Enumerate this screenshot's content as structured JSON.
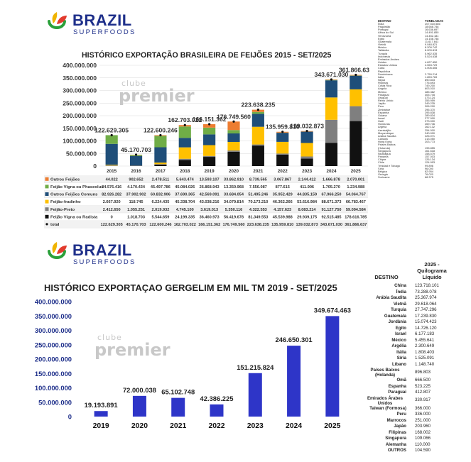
{
  "logo": {
    "brand": "BRAZIL",
    "sub": "SUPERFOODS"
  },
  "colors": {
    "outros_feijoes": "#ed7d31",
    "vigna_phaseolus": "#70ad47",
    "outros_comuns": "#1f4e79",
    "fradinho": "#ffc000",
    "preto": "#7f7f7f",
    "vigna_rajado": "#111111",
    "total_dot": "#111111",
    "sesame_bar": "#2e35c8",
    "brand_blue": "#1e2f8a"
  },
  "watermark": {
    "small": "clube",
    "big": "premier"
  },
  "chart1": {
    "chart_data": {
      "type": "bar",
      "stacked": true,
      "title": "HISTÓRICO EXPORTAÇÃO BRASILEIRA DE FEIJÕES 2015 - SET/2025",
      "categories": [
        "2015",
        "2016",
        "2017",
        "2018",
        "2019",
        "2020",
        "2021",
        "2022",
        "2023",
        "2024",
        "2025"
      ],
      "ylim": [
        0,
        400000000
      ],
      "yticks": [
        "0",
        "50.000.000",
        "100.000.000",
        "150.000.000",
        "200.000.000",
        "250.000.000",
        "300.000.000",
        "350.000.000",
        "400.000.000"
      ],
      "grid": true,
      "series": [
        {
          "name": "Feijão Vigna ou Feijão Rajado",
          "values": [
            0,
            1018703,
            5544659,
            24199335,
            36460973,
            56419678,
            81349553,
            45539988,
            29939175,
            92515485,
            178616785
          ],
          "labels": [
            "0",
            "1.018.703",
            "5.544.659",
            "24.199.335",
            "36.460.973",
            "56.419.678",
            "81.349.553",
            "45.539.988",
            "29.939.175",
            "92.515.485",
            "178.616.785"
          ]
        },
        {
          "name": "Feijão-Preto",
          "values": [
            2412650,
            1055251,
            2019932,
            4745100,
            3619013,
            5350116,
            4322553,
            4157623,
            8083214,
            91127750,
            59094584
          ],
          "labels": [
            "2.412.650",
            "1.055.251",
            "2.019.932",
            "4.745.100",
            "3.619.013",
            "5.350.116",
            "4.322.553",
            "4.157.623",
            "8.083.214",
            "91.127.750",
            "59.094.584"
          ]
        },
        {
          "name": "Feijão-fradinho",
          "values": [
            2667920,
            118745,
            6224435,
            45338704,
            43038216,
            34079814,
            70173210,
            46362266,
            53616984,
            88671373,
            66783467
          ],
          "labels": [
            "2.667.920",
            "118.745",
            "6.224.435",
            "45.338.704",
            "43.038.216",
            "34.079.814",
            "70.173.210",
            "46.362.266",
            "53.616.984",
            "88.671.373",
            "66.783.467"
          ]
        },
        {
          "name": "Outros Feijões Comuns",
          "values": [
            82926282,
            37902902,
            60832906,
            37690365,
            42569091,
            33684054,
            51495246,
            35952429,
            44835159,
            67966250,
            54064767
          ],
          "labels": [
            "82.926.282",
            "37.902.902",
            "60.832.906",
            "37.690.365",
            "42.569.091",
            "33.684.054",
            "51.495.246",
            "35.952.429",
            "44.835.159",
            "67.966.250",
            "54.064.767"
          ]
        },
        {
          "name": "Feijão Vigna ou Phaseolus",
          "values": [
            34576416,
            4170434,
            45497786,
            45084026,
            26868943,
            13350968,
            7556087,
            877615,
            411906,
            1705270,
            1234988
          ],
          "labels": [
            "34.576.416",
            "4.170.434",
            "45.497.786",
            "45.084.026",
            "26.868.943",
            "13.350.968",
            "7.556.087",
            "877.615",
            "411.906",
            "1.705.270",
            "1.234.988"
          ]
        },
        {
          "name": "Outros Feijões",
          "values": [
            44022,
            902652,
            2478511,
            5643474,
            13593107,
            33862910,
            8739565,
            3067867,
            2144412,
            1666878,
            2070001
          ],
          "labels": [
            "44.022",
            "902.652",
            "2.478.511",
            "5.643.474",
            "13.593.107",
            "33.862.910",
            "8.739.565",
            "3.067.867",
            "2.144.412",
            "1.666.878",
            "2.070.001"
          ]
        }
      ],
      "total": {
        "name": "total",
        "values": [
          122629305,
          45170703,
          122600246,
          162703022,
          166151362,
          176749560,
          223638235,
          135959810,
          139032873,
          343671030,
          361866637
        ],
        "labels": [
          "122.629.305",
          "45.170.703",
          "122.600.246",
          "162.703.022",
          "166.151.362",
          "176.749.560",
          "223.638.235",
          "135.959.810",
          "139.032.873",
          "343.671.030",
          "361.866.637"
        ]
      },
      "table_row_order": [
        "Outros Feijões",
        "Feijão Vigna ou Phaseolus",
        "Outros Feijões Comuns",
        "Feijão-fradinho",
        "Feijão-Preto",
        "Feijão Vigna ou Rajado",
        "total"
      ]
    }
  },
  "dest1": {
    "headers": [
      "DESTINO",
      "TONELADAS"
    ],
    "rows": [
      [
        "Índia",
        "207.510.586"
      ],
      [
        "Paquistão",
        "18.668.748"
      ],
      [
        "Portugal",
        "16.636.697"
      ],
      [
        "África do Sul",
        "14.491.850"
      ],
      [
        "Venezuela",
        "14.452.181"
      ],
      [
        "Egito",
        "14.158.748"
      ],
      [
        "Guatemala",
        "11.617.641"
      ],
      [
        "Vietnã",
        "9.048.821"
      ],
      [
        "México",
        "8.209.742"
      ],
      [
        "Tailândia",
        "8.009.813"
      ],
      [
        "Turquia",
        "5.962.535"
      ],
      [
        "Indonésia",
        "5.524.638"
      ],
      [
        "Emirados Árabes",
        ""
      ],
      [
        "Unidos",
        "4.827.850"
      ],
      [
        "Estados Unidos",
        "4.063.729"
      ],
      [
        "Cuba",
        "4.006.655"
      ],
      [
        "República",
        ""
      ],
      [
        "Dominicana",
        "2.759.214"
      ],
      [
        "Itália",
        "1.853.769"
      ],
      [
        "Nepal",
        "890.833"
      ],
      [
        "Filipinas",
        "776.693"
      ],
      [
        "Costa Rica",
        "749.200"
      ],
      [
        "Angola",
        "603.010"
      ],
      [
        "México",
        "485.382"
      ],
      [
        "Paraguai",
        "405.745"
      ],
      [
        "Uruguai",
        "373.124"
      ],
      [
        "Reino Unido",
        "355.959"
      ],
      [
        "Japão",
        "349.235"
      ],
      [
        "Peru",
        "306.200"
      ],
      [
        "Zimbábue",
        "296.370"
      ],
      [
        "Espanha",
        "295.838"
      ],
      [
        "Guiana",
        "289.834"
      ],
      [
        "Israel",
        "277.000"
      ],
      [
        "Haiti",
        "273.000"
      ],
      [
        "Honduras",
        "269.746"
      ],
      [
        "Argélia",
        "262.132"
      ],
      [
        "Azerbaijão",
        "254.000"
      ],
      [
        "Moçambique",
        "240.000"
      ],
      [
        "Arábia Saudita",
        "226.071"
      ],
      [
        "Canadá",
        "213.050"
      ],
      [
        "Hong Kong",
        "203.773"
      ],
      [
        "Países Baixos",
        ""
      ],
      [
        "(Holanda)",
        "195.855"
      ],
      [
        "Singapura",
        "161.618"
      ],
      [
        "Nicarágua",
        "158.579"
      ],
      [
        "Panamá",
        "157.003"
      ],
      [
        "Chipre",
        "126.134"
      ],
      [
        "Chile",
        "124.993"
      ],
      [
        "Trinidad e Tobago",
        "99.896"
      ],
      [
        "Síria",
        "96.000"
      ],
      [
        "Bélgica",
        "82.954"
      ],
      [
        "Geórgia",
        "76.020"
      ],
      [
        "Suriname",
        "68.375"
      ]
    ]
  },
  "chart2": {
    "chart_data": {
      "type": "bar",
      "title": "HISTÓRICO EXPORTAÇAO GERGELIM EM MIL TM 2019 - SET/2025",
      "categories": [
        "2019",
        "2020",
        "2021",
        "2022",
        "2023",
        "2024",
        "2025"
      ],
      "values": [
        19193891,
        72000038,
        65102748,
        42386225,
        151215824,
        246650301,
        349674463
      ],
      "labels": [
        "19.193.891",
        "72.000.038",
        "65.102.748",
        "42.386.225",
        "151.215.824",
        "246.650.301",
        "349.674.463"
      ],
      "ylim": [
        0,
        400000000
      ],
      "yticks": [
        "0",
        "50.000.000",
        "100.000.000",
        "150.000.000",
        "200.000.000",
        "250.000.000",
        "300.000.000",
        "350.000.000",
        "400.000.000"
      ],
      "grid": false
    }
  },
  "dest2": {
    "headers": [
      "DESTINO",
      "2025 - Quilograma Líquido"
    ],
    "rows": [
      [
        "China",
        "123.718.101"
      ],
      [
        "Índia",
        "73.288.078"
      ],
      [
        "Arábia Saudita",
        "25.367.974"
      ],
      [
        "Vietnã",
        "29.618.064"
      ],
      [
        "Turquia",
        "27.747.296"
      ],
      [
        "Guatemala",
        "17.239.830"
      ],
      [
        "Jordânia",
        "15.074.423"
      ],
      [
        "Egito",
        "14.726.120"
      ],
      [
        "Israel",
        "6.177.183"
      ],
      [
        "México",
        "5.455.641"
      ],
      [
        "Argélia",
        "2.300.649"
      ],
      [
        "Itália",
        "1.808.403"
      ],
      [
        "Síria",
        "1.525.091"
      ],
      [
        "Líbano",
        "1.148.740"
      ],
      [
        "Países Baixos (Holanda)",
        "896.803"
      ],
      [
        "Omã",
        "666.500"
      ],
      [
        "Espanha",
        "523.225"
      ],
      [
        "Paraguai",
        "412.807"
      ],
      [
        "Emirados Árabes Unidos",
        "330.917"
      ],
      [
        "Taiwan (Formosa)",
        "366.000"
      ],
      [
        "Peru",
        "336.000"
      ],
      [
        "Marrocos",
        "251.000"
      ],
      [
        "Japão",
        "203.960"
      ],
      [
        "Filipinas",
        "168.002"
      ],
      [
        "Singapura",
        "109.066"
      ],
      [
        "Alemanha",
        "110.000"
      ],
      [
        "OUTROS",
        "104.590"
      ]
    ]
  }
}
